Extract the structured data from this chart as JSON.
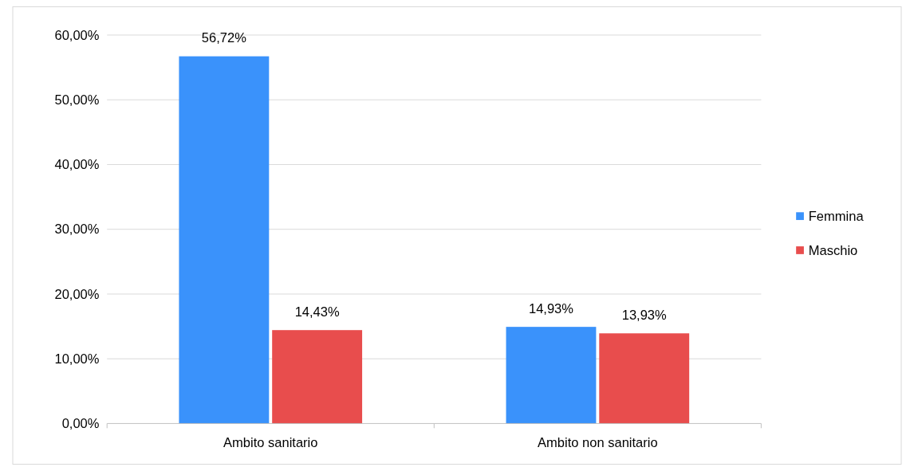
{
  "chart_data": {
    "type": "bar",
    "categories": [
      "Ambito sanitario",
      "Ambito non sanitario"
    ],
    "series": [
      {
        "name": "Femmina",
        "color": "#3a92fb",
        "values": [
          56.72,
          14.93
        ],
        "value_labels": [
          "56,72%",
          "14,93%"
        ]
      },
      {
        "name": "Maschio",
        "color": "#e84d4d",
        "values": [
          14.43,
          13.93
        ],
        "value_labels": [
          "14,43%",
          "13,93%"
        ]
      }
    ],
    "ylim": [
      0,
      60
    ],
    "yticks": [
      {
        "value": 0,
        "label": "0,00%"
      },
      {
        "value": 10,
        "label": "10,00%"
      },
      {
        "value": 20,
        "label": "20,00%"
      },
      {
        "value": 30,
        "label": "30,00%"
      },
      {
        "value": 40,
        "label": "40,00%"
      },
      {
        "value": 50,
        "label": "50,00%"
      },
      {
        "value": 60,
        "label": "60,00%"
      }
    ],
    "grid": "y",
    "legend": "right"
  }
}
